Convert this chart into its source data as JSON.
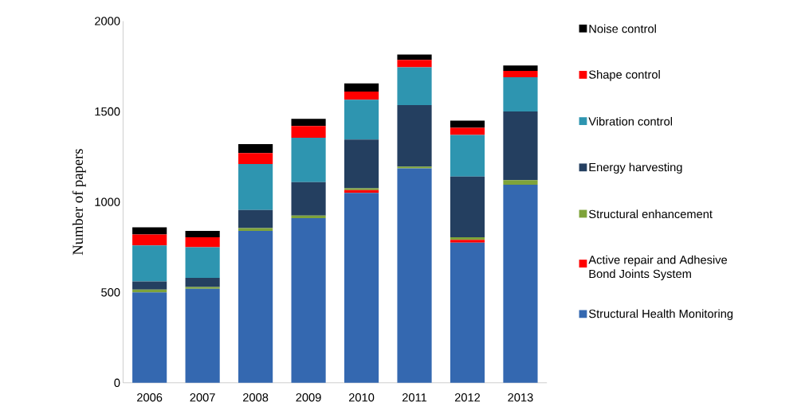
{
  "chart_data": {
    "type": "bar",
    "stacked": true,
    "ylabel": "Number of papers",
    "categories": [
      "2006",
      "2007",
      "2008",
      "2009",
      "2010",
      "2011",
      "2012",
      "2013"
    ],
    "ylim": [
      0,
      2000
    ],
    "yticks": [
      0,
      500,
      1000,
      1500,
      2000
    ],
    "legend": "right",
    "series": [
      {
        "name": "Structural  Health Monitoring",
        "color": "#3468b0",
        "values": [
          500,
          520,
          840,
          910,
          1050,
          1185,
          775,
          1095
        ]
      },
      {
        "name": "Active repair and Adhesive Bond Joints System",
        "color": "#ff0000",
        "values": [
          0,
          0,
          0,
          0,
          15,
          0,
          15,
          0
        ]
      },
      {
        "name": "Structural  enhancement",
        "color": "#7ea33a",
        "values": [
          15,
          10,
          15,
          15,
          10,
          10,
          15,
          25
        ]
      },
      {
        "name": "Energy harvesting",
        "color": "#243f60",
        "values": [
          45,
          50,
          100,
          185,
          270,
          340,
          335,
          380
        ]
      },
      {
        "name": "Vibration control",
        "color": "#2e95b0",
        "values": [
          200,
          170,
          255,
          245,
          220,
          210,
          230,
          190
        ]
      },
      {
        "name": "Shape control",
        "color": "#ff0000",
        "values": [
          60,
          55,
          60,
          65,
          45,
          40,
          40,
          35
        ]
      },
      {
        "name": "Noise control",
        "color": "#000000",
        "values": [
          40,
          35,
          50,
          40,
          45,
          30,
          40,
          30
        ]
      }
    ]
  }
}
